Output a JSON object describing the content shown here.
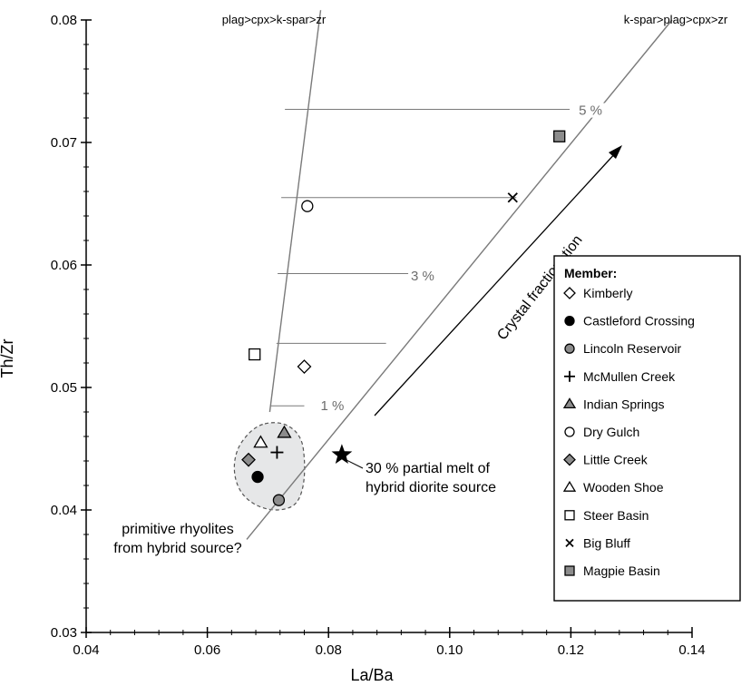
{
  "chart_data": {
    "type": "scatter",
    "xlabel": "La/Ba",
    "ylabel": "Th/Zr",
    "xlim": [
      0.04,
      0.14
    ],
    "ylim": [
      0.03,
      0.08
    ],
    "xticks": [
      "0.04",
      "0.06",
      "0.08",
      "0.10",
      "0.12",
      "0.14"
    ],
    "yticks": [
      "0.03",
      "0.04",
      "0.05",
      "0.06",
      "0.07",
      "0.08"
    ],
    "grid": false,
    "legend": {
      "title": "Member:",
      "position": "right",
      "entries": [
        {
          "name": "Kimberly",
          "marker": "diamond-open"
        },
        {
          "name": "Castleford Crossing",
          "marker": "circle-filled"
        },
        {
          "name": "Lincoln Reservoir",
          "marker": "circle-gray"
        },
        {
          "name": "McMullen Creek",
          "marker": "plus"
        },
        {
          "name": "Indian Springs",
          "marker": "triangle-gray"
        },
        {
          "name": "Dry Gulch",
          "marker": "circle-open"
        },
        {
          "name": "Little Creek",
          "marker": "diamond-gray"
        },
        {
          "name": "Wooden Shoe",
          "marker": "triangle-open"
        },
        {
          "name": "Steer Basin",
          "marker": "square-open"
        },
        {
          "name": "Big Bluff",
          "marker": "x"
        },
        {
          "name": "Magpie Basin",
          "marker": "square-gray"
        }
      ]
    },
    "series": [
      {
        "name": "Kimberly",
        "marker": "diamond-open",
        "points": [
          [
            0.076,
            0.0517
          ]
        ]
      },
      {
        "name": "Castleford Crossing",
        "marker": "circle-filled",
        "points": [
          [
            0.0683,
            0.0427
          ]
        ]
      },
      {
        "name": "Lincoln Reservoir",
        "marker": "circle-gray",
        "points": [
          [
            0.0718,
            0.0408
          ]
        ]
      },
      {
        "name": "McMullen Creek",
        "marker": "plus",
        "points": [
          [
            0.0715,
            0.0447
          ]
        ]
      },
      {
        "name": "Indian Springs",
        "marker": "triangle-gray",
        "points": [
          [
            0.0727,
            0.0463
          ]
        ]
      },
      {
        "name": "Dry Gulch",
        "marker": "circle-open",
        "points": [
          [
            0.0765,
            0.0648
          ]
        ]
      },
      {
        "name": "Little Creek",
        "marker": "diamond-gray",
        "points": [
          [
            0.0668,
            0.0441
          ]
        ]
      },
      {
        "name": "Wooden Shoe",
        "marker": "triangle-open",
        "points": [
          [
            0.0688,
            0.0455
          ]
        ]
      },
      {
        "name": "Steer Basin",
        "marker": "square-open",
        "points": [
          [
            0.0678,
            0.0527
          ]
        ]
      },
      {
        "name": "Big Bluff",
        "marker": "x",
        "points": [
          [
            0.1104,
            0.0655
          ]
        ]
      },
      {
        "name": "Magpie Basin",
        "marker": "square-gray",
        "points": [
          [
            0.1181,
            0.0705
          ]
        ]
      }
    ],
    "star": {
      "x": 0.0822,
      "y": 0.0445
    },
    "fractionation_lines": [
      {
        "label": "plag>cpx>k-spar>zr",
        "from": [
          0.0703,
          0.048
        ],
        "to": [
          0.0787,
          0.0808
        ]
      },
      {
        "label": "k-spar>plag>cpx>zr",
        "from": [
          0.0665,
          0.0376
        ],
        "to": [
          0.1367,
          0.08
        ]
      }
    ],
    "tie_lines": [
      {
        "x1": 0.0705,
        "x2": 0.076,
        "y": 0.0485
      },
      {
        "x1": 0.0714,
        "x2": 0.0895,
        "y": 0.0536
      },
      {
        "x1": 0.0716,
        "x2": 0.0937,
        "y": 0.0593
      },
      {
        "x1": 0.0722,
        "x2": 0.111,
        "y": 0.0655
      },
      {
        "x1": 0.0728,
        "x2": 0.1198,
        "y": 0.0727
      }
    ],
    "tick_labels": [
      {
        "text": "1 %",
        "x": 0.0787,
        "y": 0.0483
      },
      {
        "text": "3 %",
        "x": 0.0936,
        "y": 0.0589
      },
      {
        "text": "5 %",
        "x": 0.1213,
        "y": 0.0724
      }
    ],
    "annotations": {
      "crystal_fractionation": "Crystal fractionation",
      "partial_melt_line1": "30 % partial melt of",
      "partial_melt_line2": "hybrid diorite source",
      "primitive_line1": "primitive rhyolites",
      "primitive_line2": "from hybrid source?"
    },
    "colors": {
      "gray_fill": "#8c8c8c",
      "field_fill": "#e6e7e8",
      "line": "#7a7a7a",
      "label_gray": "#6d6d6d"
    }
  }
}
